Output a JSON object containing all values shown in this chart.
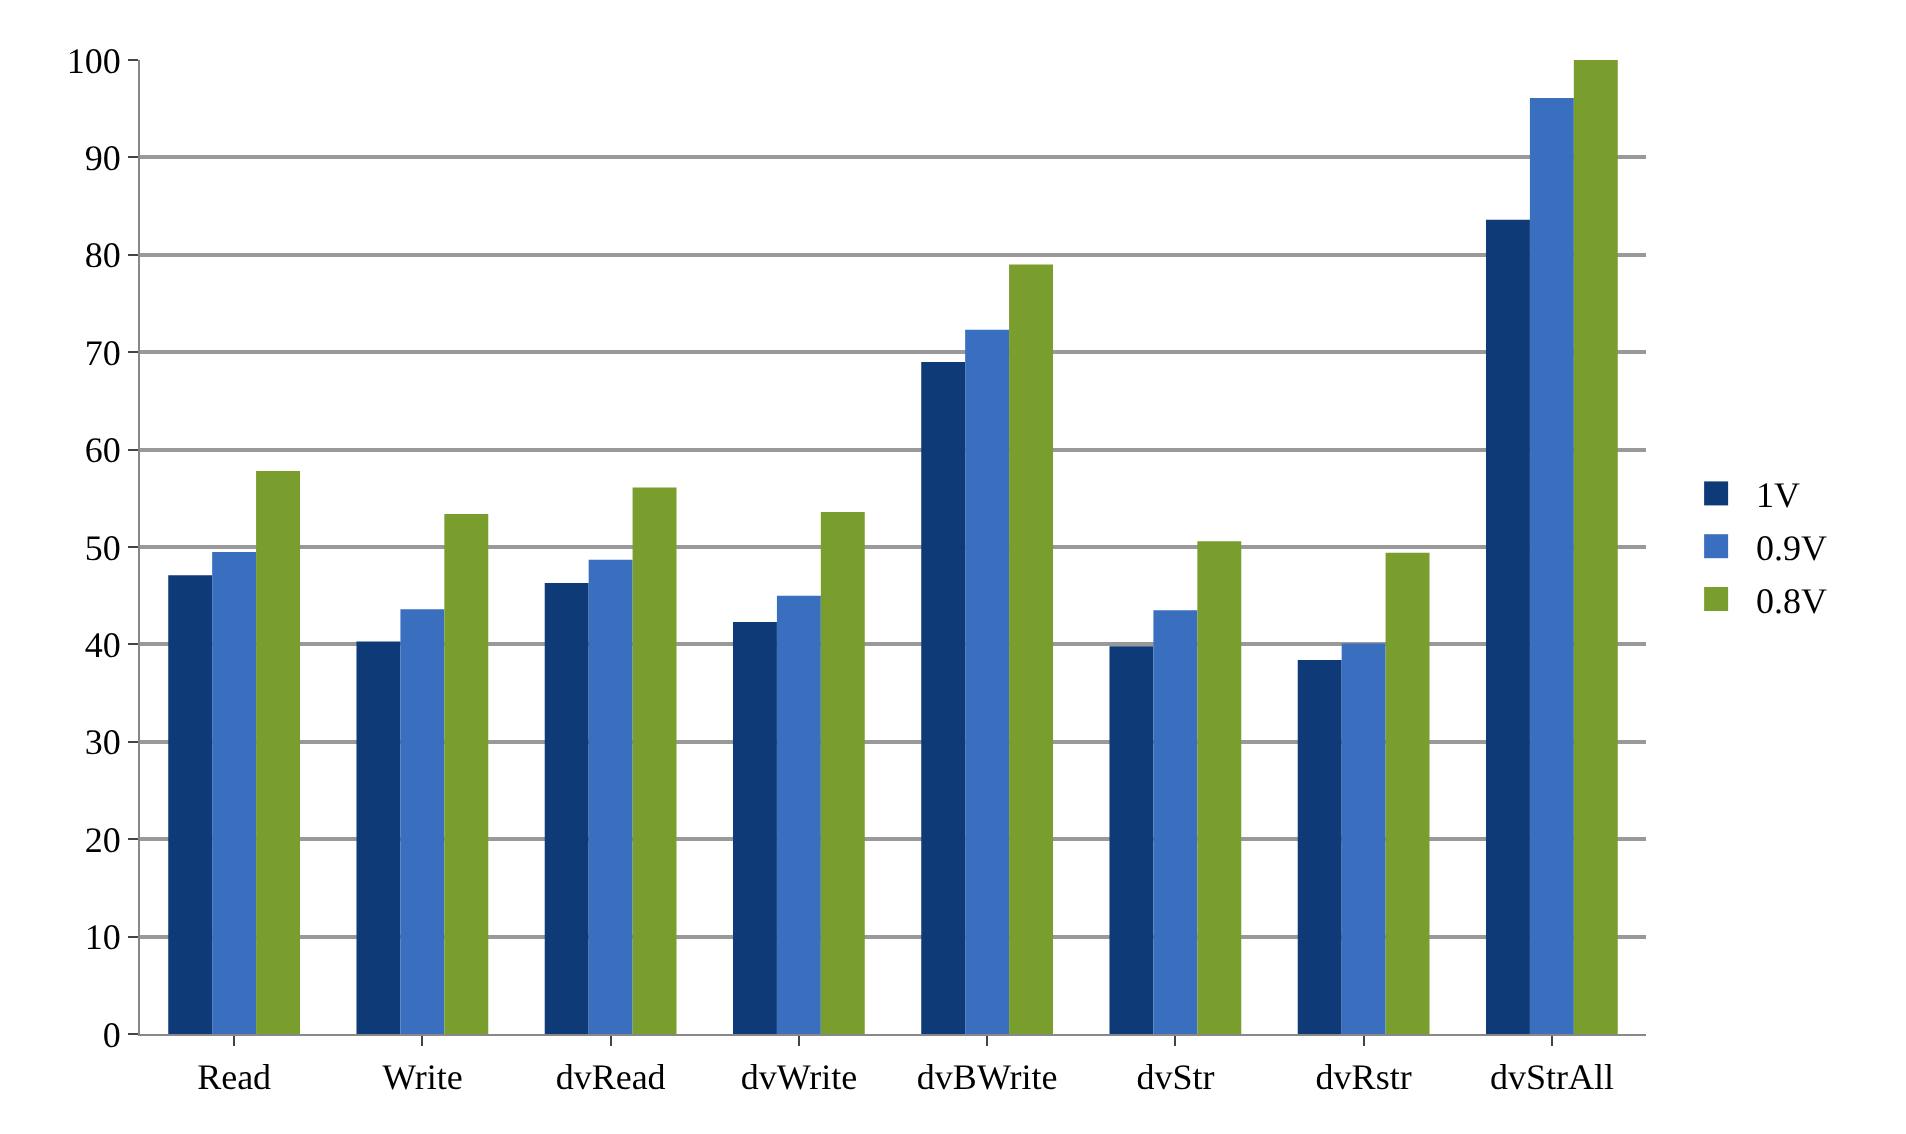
{
  "chart_data": {
    "type": "bar",
    "categories": [
      "Read",
      "Write",
      "dvRead",
      "dvWrite",
      "dvBWrite",
      "dvStr",
      "dvRstr",
      "dvStrAll"
    ],
    "series": [
      {
        "name": "1V",
        "color": "#0e3a78",
        "values": [
          47.1,
          40.3,
          46.3,
          42.3,
          69.0,
          39.8,
          38.4,
          83.6
        ]
      },
      {
        "name": "0.9V",
        "color": "#3a6fc0",
        "values": [
          49.5,
          43.6,
          48.7,
          45.0,
          72.3,
          43.5,
          40.1,
          96.1
        ]
      },
      {
        "name": "0.8V",
        "color": "#7a9e2e",
        "values": [
          57.8,
          53.4,
          56.1,
          53.6,
          79.0,
          50.6,
          49.4,
          100
        ]
      }
    ],
    "ylim": [
      0,
      100
    ],
    "yticks": [
      0,
      10,
      20,
      30,
      40,
      50,
      60,
      70,
      80,
      90,
      100
    ],
    "grid": "y",
    "legend": "right"
  }
}
